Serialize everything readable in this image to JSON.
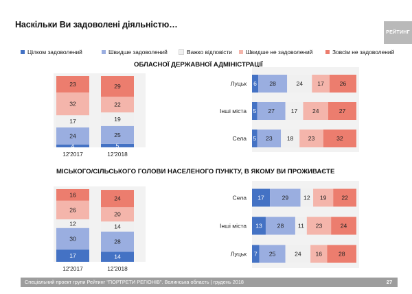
{
  "title": "Наскільки Ви задоволені діяльністю…",
  "logo": "РЕЙТИНГ",
  "legend": [
    {
      "label": "Цілком задоволений",
      "color": "#4472c4"
    },
    {
      "label": "Швидше задоволений",
      "color": "#9aaee0"
    },
    {
      "label": "Важко відповісти",
      "color": "#f0f0f0"
    },
    {
      "label": "Швидше не задоволений",
      "color": "#f4b5ab"
    },
    {
      "label": "Зовсім не задоволений",
      "color": "#ec7d6e"
    }
  ],
  "section1_title": "ОБЛАСНОЇ ДЕРЖАВНОЇ АДМІНІСТРАЦІЇ",
  "section2_title": "МІСЬКОГО/СІЛЬСЬКОГО ГОЛОВИ НАСЕЛЕНОГО ПУНКТУ, В ЯКОМУ ВИ ПРОЖИВАЄТЕ",
  "footer": "Спеціальний проект групи Рейтинг \"ПОРТРЕТИ РЕГІОНІВ\". Волинська область | грудень 2018",
  "page_number": "27",
  "chart_data": [
    {
      "type": "bar",
      "orientation": "vertical",
      "stacked": true,
      "section": "ОБЛАСНОЇ ДЕРЖАВНОЇ АДМІНІСТРАЦІЇ",
      "categories": [
        "12'2017",
        "12'2018"
      ],
      "series": [
        {
          "name": "Цілком задоволений",
          "values": [
            4,
            5
          ]
        },
        {
          "name": "Швидше задоволений",
          "values": [
            24,
            25
          ]
        },
        {
          "name": "Важко відповісти",
          "values": [
            17,
            19
          ]
        },
        {
          "name": "Швидше не задоволений",
          "values": [
            32,
            22
          ]
        },
        {
          "name": "Зовсім не задоволений",
          "values": [
            23,
            29
          ]
        }
      ]
    },
    {
      "type": "bar",
      "orientation": "horizontal",
      "stacked": true,
      "section": "ОБЛАСНОЇ ДЕРЖАВНОЇ АДМІНІСТРАЦІЇ",
      "categories": [
        "Луцьк",
        "Інші міста",
        "Села"
      ],
      "series": [
        {
          "name": "Цілком задоволений",
          "values": [
            6,
            5,
            5
          ]
        },
        {
          "name": "Швидше задоволений",
          "values": [
            28,
            27,
            23
          ]
        },
        {
          "name": "Важко відповісти",
          "values": [
            24,
            17,
            18
          ]
        },
        {
          "name": "Швидше не задоволений",
          "values": [
            17,
            24,
            23
          ]
        },
        {
          "name": "Зовсім не задоволений",
          "values": [
            26,
            27,
            32
          ]
        }
      ]
    },
    {
      "type": "bar",
      "orientation": "vertical",
      "stacked": true,
      "section": "МІСЬКОГО/СІЛЬСЬКОГО ГОЛОВИ НАСЕЛЕНОГО ПУНКТУ, В ЯКОМУ ВИ ПРОЖИВАЄТЕ",
      "categories": [
        "12'2017",
        "12'2018"
      ],
      "series": [
        {
          "name": "Цілком задоволений",
          "values": [
            17,
            14
          ]
        },
        {
          "name": "Швидше задоволений",
          "values": [
            30,
            28
          ]
        },
        {
          "name": "Важко відповісти",
          "values": [
            12,
            14
          ]
        },
        {
          "name": "Швидше не задоволений",
          "values": [
            26,
            20
          ]
        },
        {
          "name": "Зовсім не задоволений",
          "values": [
            16,
            24
          ]
        }
      ]
    },
    {
      "type": "bar",
      "orientation": "horizontal",
      "stacked": true,
      "section": "МІСЬКОГО/СІЛЬСЬКОГО ГОЛОВИ НАСЕЛЕНОГО ПУНКТУ, В ЯКОМУ ВИ ПРОЖИВАЄТЕ",
      "categories": [
        "Села",
        "Інші міста",
        "Луцьк"
      ],
      "series": [
        {
          "name": "Цілком задоволений",
          "values": [
            17,
            13,
            7
          ]
        },
        {
          "name": "Швидше задоволений",
          "values": [
            29,
            28,
            25
          ]
        },
        {
          "name": "Важко відповісти",
          "values": [
            12,
            11,
            24
          ]
        },
        {
          "name": "Швидше не задоволений",
          "values": [
            19,
            23,
            16
          ]
        },
        {
          "name": "Зовсім не задоволений",
          "values": [
            22,
            24,
            28
          ]
        }
      ]
    }
  ]
}
